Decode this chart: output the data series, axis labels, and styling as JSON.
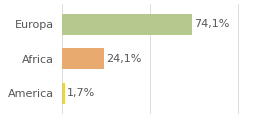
{
  "categories": [
    "Europa",
    "Africa",
    "America"
  ],
  "values": [
    74.1,
    24.1,
    1.7
  ],
  "bar_colors": [
    "#b5c98e",
    "#e8aa6e",
    "#e8d060"
  ],
  "label_format": [
    "74,1%",
    "24,1%",
    "1,7%"
  ],
  "xlim": [
    0,
    105
  ],
  "background_color": "#ffffff",
  "grid_color": "#dddddd",
  "bar_height": 0.62,
  "label_fontsize": 8,
  "category_fontsize": 8,
  "text_color": "#555555"
}
